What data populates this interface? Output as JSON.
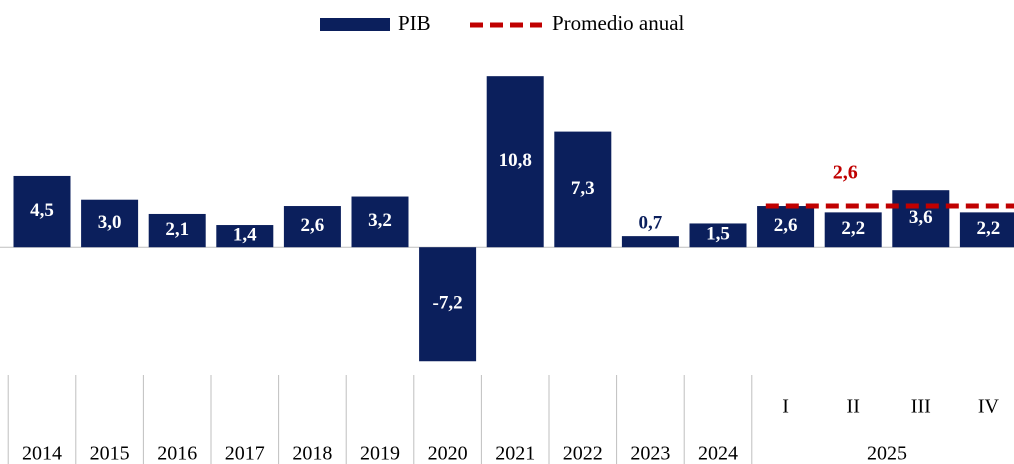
{
  "chart_data": {
    "type": "bar",
    "categories": [
      "2014",
      "2015",
      "2016",
      "2017",
      "2018",
      "2019",
      "2020",
      "2021",
      "2022",
      "2023",
      "2024",
      "I",
      "II",
      "III",
      "IV"
    ],
    "category_groups": [
      {
        "label": "2025",
        "from": "I",
        "to": "IV"
      }
    ],
    "series": [
      {
        "name": "PIB",
        "color": "#0b1f5c",
        "values": [
          4.5,
          3.0,
          2.1,
          1.4,
          2.6,
          3.2,
          -7.2,
          10.8,
          7.3,
          0.7,
          1.5,
          2.6,
          2.2,
          3.6,
          2.2
        ],
        "value_labels": [
          "4,5",
          "3,0",
          "2,1",
          "1,4",
          "2,6",
          "3,2",
          "-7,2",
          "10,8",
          "7,3",
          "0,7",
          "1,5",
          "2,6",
          "2,2",
          "3,6",
          "2,2"
        ]
      }
    ],
    "average": {
      "name": "Promedio anual",
      "color": "#c00000",
      "value": 2.6,
      "value_label": "2,6",
      "over": "2025"
    },
    "ylim": [
      -7.5,
      11
    ],
    "legend": "top"
  }
}
